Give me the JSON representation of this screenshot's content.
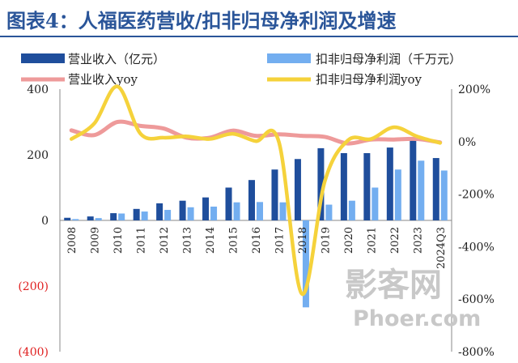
{
  "title": "图表4：人福医药营收/扣非归母净利润及增速",
  "watermark": {
    "line1": "影客网",
    "line2": "Phoer.com"
  },
  "colors": {
    "revenue": "#1f4e9c",
    "profit": "#73aef0",
    "revenue_yoy": "#ee9a9a",
    "profit_yoy": "#f5d23b",
    "title": "#2a5599",
    "negative_tick": "#e02020"
  },
  "chart_data": {
    "type": "bar",
    "categories": [
      "2008",
      "2009",
      "2010",
      "2011",
      "2012",
      "2013",
      "2014",
      "2015",
      "2016",
      "2017",
      "2018",
      "2019",
      "2020",
      "2021",
      "2022",
      "2023",
      "2024Q3"
    ],
    "series": [
      {
        "name": "营业收入（亿元）",
        "kind": "bar",
        "axis": "left",
        "values": [
          8,
          12,
          22,
          35,
          52,
          60,
          70,
          100,
          123,
          155,
          187,
          220,
          205,
          205,
          222,
          245,
          190
        ]
      },
      {
        "name": "扣非归母净利润（千万元）",
        "kind": "bar",
        "axis": "left",
        "values": [
          4,
          7,
          21,
          27,
          32,
          40,
          42,
          55,
          56,
          55,
          -265,
          48,
          60,
          100,
          155,
          182,
          152
        ]
      },
      {
        "name": "营业收入yoy",
        "kind": "line",
        "axis": "right",
        "values": [
          43,
          25,
          75,
          60,
          50,
          15,
          15,
          42,
          22,
          28,
          22,
          18,
          -7,
          8,
          8,
          10,
          -3
        ]
      },
      {
        "name": "扣非归母净利润yoy",
        "kind": "line",
        "axis": "right",
        "values": [
          10,
          70,
          210,
          30,
          15,
          20,
          10,
          30,
          2,
          0,
          -580,
          -150,
          5,
          10,
          55,
          20,
          -5
        ]
      }
    ],
    "left_axis": {
      "ylim": [
        -400,
        400
      ],
      "ticks": [
        400,
        200,
        0,
        -200,
        -400
      ],
      "tick_labels": [
        "400",
        "200",
        "0",
        "(200)",
        "(400)"
      ]
    },
    "right_axis": {
      "ylim": [
        -800,
        200
      ],
      "ticks": [
        200,
        0,
        -200,
        -400,
        -600,
        -800
      ],
      "tick_labels": [
        "200%",
        "0%",
        "-200%",
        "-400%",
        "-600%",
        "-800%"
      ]
    },
    "legend_position": "top",
    "grid": false
  }
}
